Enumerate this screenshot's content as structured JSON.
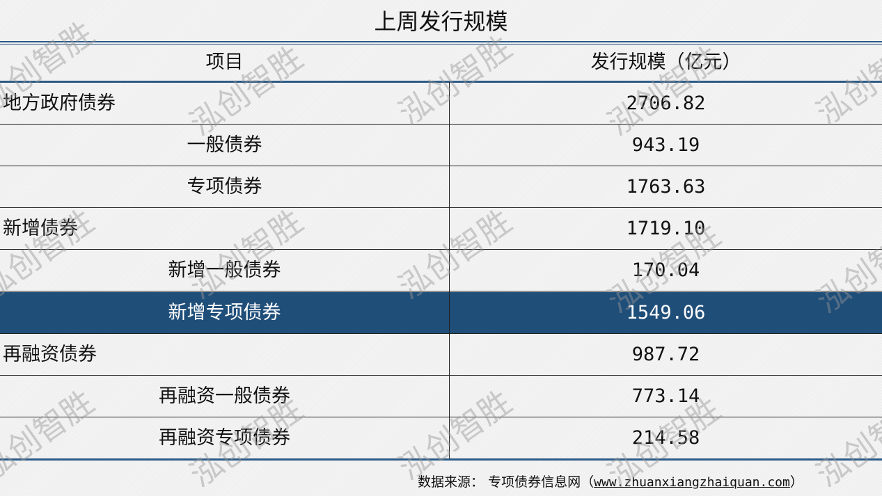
{
  "title": "上周发行规模",
  "watermark": "泓创智胜",
  "colors": {
    "accent_line": "#2c5a86",
    "highlight_row": "#1f4e79"
  },
  "chart_data": {
    "type": "table",
    "title": "上周发行规模",
    "columns": [
      "项目",
      "发行规模（亿元）"
    ],
    "rows": [
      {
        "item": "地方政府债券",
        "value": "2706.82",
        "level": 0
      },
      {
        "item": "一般债券",
        "value": "943.19",
        "level": 1
      },
      {
        "item": "专项债券",
        "value": "1763.63",
        "level": 1
      },
      {
        "item": "新增债券",
        "value": "1719.10",
        "level": 0
      },
      {
        "item": "新增一般债券",
        "value": "170.04",
        "level": 1
      },
      {
        "item": "新增专项债券",
        "value": "1549.06",
        "level": 1,
        "highlighted": true
      },
      {
        "item": "再融资债券",
        "value": "987.72",
        "level": 0
      },
      {
        "item": "再融资一般债券",
        "value": "773.14",
        "level": 1
      },
      {
        "item": "再融资专项债券",
        "value": "214.58",
        "level": 1
      }
    ]
  },
  "source": {
    "label": "数据来源：",
    "name": "专项债券信息网（",
    "url": "www.zhuanxiangzhaiquan.com",
    "close": "）"
  }
}
